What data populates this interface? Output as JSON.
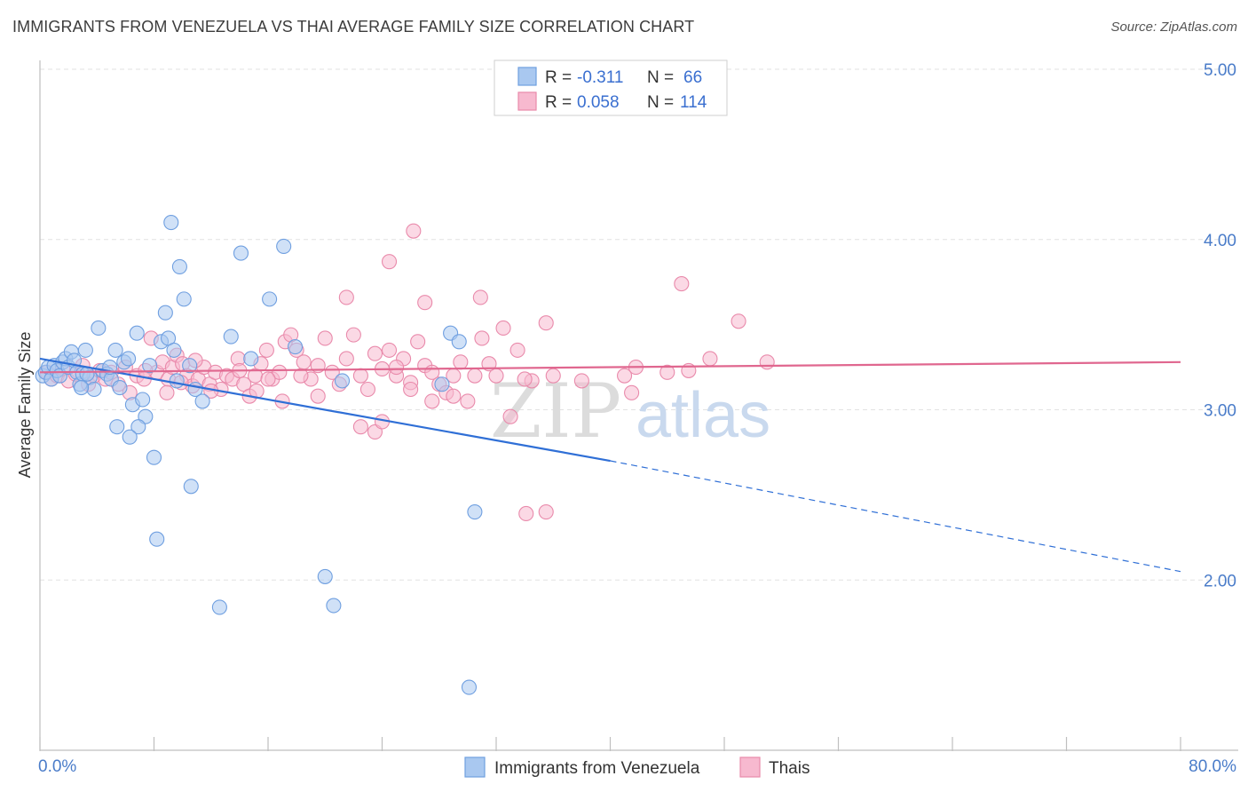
{
  "title": "IMMIGRANTS FROM VENEZUELA VS THAI AVERAGE FAMILY SIZE CORRELATION CHART",
  "source": "Source: ZipAtlas.com",
  "watermark": {
    "part1": "ZIP",
    "part2": "atlas"
  },
  "legend_top": {
    "r_label": "R =",
    "n_label": "N =",
    "rows": [
      {
        "r": "-0.311",
        "n": "66",
        "color": "#a9c8f0",
        "stroke": "#6f9fe0"
      },
      {
        "r": "0.058",
        "n": "114",
        "color": "#f7b9cf",
        "stroke": "#e98aab"
      }
    ]
  },
  "legend_bottom": [
    {
      "label": "Immigrants from Venezuela",
      "color": "#a9c8f0",
      "stroke": "#6f9fe0"
    },
    {
      "label": "Thais",
      "color": "#f7b9cf",
      "stroke": "#e98aab"
    }
  ],
  "chart_data": {
    "type": "scatter",
    "title": "IMMIGRANTS FROM VENEZUELA VS THAI AVERAGE FAMILY SIZE CORRELATION CHART",
    "xlabel": "",
    "ylabel": "Average Family Size",
    "xlim": [
      0,
      80
    ],
    "ylim": [
      1.0,
      5.0
    ],
    "x_tick_labels": [
      "0.0%",
      "80.0%"
    ],
    "y_ticks": [
      2.0,
      3.0,
      4.0,
      5.0
    ],
    "y_tick_labels": [
      "2.00",
      "3.00",
      "4.00",
      "5.00"
    ],
    "grid": true,
    "legend_position": "top-center",
    "series": [
      {
        "name": "Immigrants from Venezuela",
        "color": "#6f9fe0",
        "trend": {
          "x0": 0,
          "y0": 3.3,
          "x1": 40,
          "y1": 2.7,
          "dashed_to_x": 80,
          "dashed_to_y": 2.05,
          "color": "#2f6fd6"
        },
        "points": [
          [
            0.2,
            3.2
          ],
          [
            0.4,
            3.22
          ],
          [
            0.6,
            3.25
          ],
          [
            0.8,
            3.18
          ],
          [
            1.0,
            3.26
          ],
          [
            1.2,
            3.23
          ],
          [
            1.4,
            3.2
          ],
          [
            1.6,
            3.28
          ],
          [
            1.8,
            3.3
          ],
          [
            2.0,
            3.25
          ],
          [
            2.2,
            3.34
          ],
          [
            2.4,
            3.29
          ],
          [
            2.6,
            3.22
          ],
          [
            2.8,
            3.15
          ],
          [
            3.0,
            3.21
          ],
          [
            3.2,
            3.35
          ],
          [
            3.5,
            3.19
          ],
          [
            3.8,
            3.12
          ],
          [
            4.1,
            3.48
          ],
          [
            4.4,
            3.23
          ],
          [
            4.7,
            3.21
          ],
          [
            5.0,
            3.18
          ],
          [
            5.3,
            3.35
          ],
          [
            5.6,
            3.13
          ],
          [
            5.9,
            3.28
          ],
          [
            6.2,
            3.3
          ],
          [
            6.5,
            3.03
          ],
          [
            6.8,
            3.45
          ],
          [
            7.2,
            3.06
          ],
          [
            7.4,
            2.96
          ],
          [
            7.7,
            3.26
          ],
          [
            8.0,
            2.72
          ],
          [
            8.2,
            2.24
          ],
          [
            8.5,
            3.4
          ],
          [
            8.8,
            3.57
          ],
          [
            9.0,
            3.42
          ],
          [
            9.2,
            4.1
          ],
          [
            9.4,
            3.35
          ],
          [
            9.6,
            3.17
          ],
          [
            9.8,
            3.84
          ],
          [
            10.1,
            3.65
          ],
          [
            10.5,
            3.26
          ],
          [
            10.6,
            2.55
          ],
          [
            10.9,
            3.12
          ],
          [
            11.4,
            3.05
          ],
          [
            12.6,
            1.84
          ],
          [
            13.4,
            3.43
          ],
          [
            14.8,
            3.3
          ],
          [
            17.9,
            3.37
          ],
          [
            20.0,
            2.02
          ],
          [
            20.6,
            1.85
          ],
          [
            21.2,
            3.17
          ],
          [
            28.2,
            3.15
          ],
          [
            28.8,
            3.45
          ],
          [
            29.4,
            3.4
          ],
          [
            30.1,
            1.37
          ],
          [
            30.5,
            2.4
          ],
          [
            4.9,
            3.25
          ],
          [
            6.9,
            2.9
          ],
          [
            6.3,
            2.84
          ],
          [
            5.4,
            2.9
          ],
          [
            14.1,
            3.92
          ],
          [
            16.1,
            3.65
          ],
          [
            17.1,
            3.96
          ],
          [
            2.9,
            3.13
          ],
          [
            3.3,
            3.21
          ]
        ]
      },
      {
        "name": "Thais",
        "color": "#e98aab",
        "trend": {
          "x0": 0,
          "y0": 3.22,
          "x1": 80,
          "y1": 3.28,
          "color": "#e0678f"
        },
        "points": [
          [
            0.5,
            3.22
          ],
          [
            0.8,
            3.18
          ],
          [
            1.2,
            3.2
          ],
          [
            1.6,
            3.24
          ],
          [
            2.0,
            3.17
          ],
          [
            2.5,
            3.21
          ],
          [
            3.0,
            3.26
          ],
          [
            3.4,
            3.15
          ],
          [
            3.8,
            3.2
          ],
          [
            4.2,
            3.23
          ],
          [
            4.6,
            3.18
          ],
          [
            5.0,
            3.22
          ],
          [
            5.5,
            3.15
          ],
          [
            6.0,
            3.25
          ],
          [
            6.3,
            3.1
          ],
          [
            6.8,
            3.2
          ],
          [
            7.3,
            3.18
          ],
          [
            7.8,
            3.42
          ],
          [
            8.2,
            3.22
          ],
          [
            8.6,
            3.28
          ],
          [
            9.0,
            3.18
          ],
          [
            9.3,
            3.25
          ],
          [
            9.6,
            3.32
          ],
          [
            10.0,
            3.27
          ],
          [
            10.3,
            3.2
          ],
          [
            10.7,
            3.14
          ],
          [
            11.1,
            3.18
          ],
          [
            11.5,
            3.25
          ],
          [
            11.9,
            3.15
          ],
          [
            12.3,
            3.22
          ],
          [
            12.7,
            3.12
          ],
          [
            13.1,
            3.2
          ],
          [
            13.5,
            3.18
          ],
          [
            13.9,
            3.3
          ],
          [
            14.3,
            3.15
          ],
          [
            14.7,
            3.08
          ],
          [
            15.1,
            3.2
          ],
          [
            15.5,
            3.27
          ],
          [
            15.9,
            3.35
          ],
          [
            16.3,
            3.18
          ],
          [
            16.8,
            3.22
          ],
          [
            17.2,
            3.4
          ],
          [
            17.6,
            3.44
          ],
          [
            18.0,
            3.35
          ],
          [
            18.5,
            3.28
          ],
          [
            19.0,
            3.18
          ],
          [
            19.5,
            3.26
          ],
          [
            20.0,
            3.42
          ],
          [
            20.5,
            3.22
          ],
          [
            21.0,
            3.15
          ],
          [
            21.5,
            3.3
          ],
          [
            22.0,
            3.44
          ],
          [
            22.5,
            3.2
          ],
          [
            23.0,
            3.12
          ],
          [
            23.5,
            3.33
          ],
          [
            24.0,
            3.24
          ],
          [
            24.5,
            3.35
          ],
          [
            25.0,
            3.2
          ],
          [
            25.5,
            3.3
          ],
          [
            26.0,
            3.16
          ],
          [
            26.5,
            3.4
          ],
          [
            27.0,
            3.26
          ],
          [
            27.5,
            3.22
          ],
          [
            28.0,
            3.15
          ],
          [
            28.5,
            3.1
          ],
          [
            29.0,
            3.2
          ],
          [
            29.5,
            3.28
          ],
          [
            30.0,
            3.05
          ],
          [
            30.5,
            3.2
          ],
          [
            31.0,
            3.42
          ],
          [
            32.0,
            3.2
          ],
          [
            26.2,
            4.05
          ],
          [
            30.9,
            3.66
          ],
          [
            32.5,
            3.48
          ],
          [
            34.5,
            3.17
          ],
          [
            45.0,
            3.74
          ],
          [
            24.5,
            3.87
          ],
          [
            27.0,
            3.63
          ],
          [
            21.5,
            3.66
          ],
          [
            35.5,
            3.51
          ],
          [
            22.5,
            2.9
          ],
          [
            23.5,
            2.87
          ],
          [
            24.0,
            2.93
          ],
          [
            33.0,
            2.96
          ],
          [
            34.1,
            2.39
          ],
          [
            35.5,
            2.4
          ],
          [
            29.0,
            3.08
          ],
          [
            27.5,
            3.05
          ],
          [
            38.0,
            3.17
          ],
          [
            41.0,
            3.2
          ],
          [
            41.5,
            3.1
          ],
          [
            41.8,
            3.25
          ],
          [
            44.0,
            3.22
          ],
          [
            47.0,
            3.3
          ],
          [
            45.5,
            3.23
          ],
          [
            49.0,
            3.52
          ],
          [
            51.0,
            3.28
          ],
          [
            36.0,
            3.2
          ],
          [
            31.5,
            3.27
          ],
          [
            33.5,
            3.35
          ],
          [
            34.0,
            3.18
          ],
          [
            26.0,
            3.12
          ],
          [
            25.0,
            3.25
          ],
          [
            19.5,
            3.08
          ],
          [
            18.3,
            3.2
          ],
          [
            17.0,
            3.05
          ],
          [
            16.0,
            3.18
          ],
          [
            15.2,
            3.11
          ],
          [
            14.0,
            3.23
          ],
          [
            12.0,
            3.11
          ],
          [
            10.9,
            3.29
          ],
          [
            9.9,
            3.16
          ],
          [
            8.9,
            3.1
          ],
          [
            7.4,
            3.23
          ]
        ]
      }
    ]
  }
}
